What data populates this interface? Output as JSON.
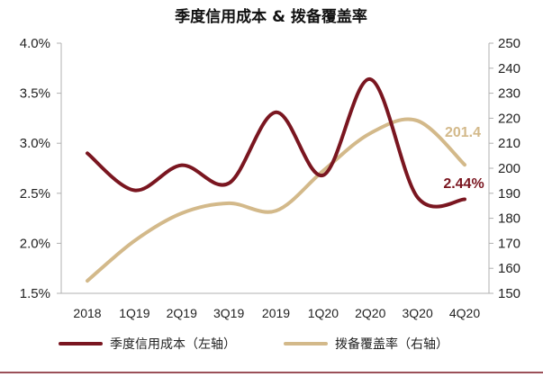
{
  "chart_data": {
    "type": "line",
    "title": "季度信用成本 & 拨备覆盖率",
    "categories": [
      "2018",
      "1Q19",
      "2Q19",
      "3Q19",
      "2019",
      "1Q20",
      "2Q20",
      "3Q20",
      "4Q20"
    ],
    "series": [
      {
        "name": "季度信用成本（左轴）",
        "axis": "left",
        "color": "#7a1620",
        "values": [
          2.9,
          2.53,
          2.78,
          2.6,
          3.31,
          2.68,
          3.64,
          2.46,
          2.44
        ],
        "value_label": "2.44%"
      },
      {
        "name": "拨备覆盖率（右轴）",
        "axis": "right",
        "color": "#d3b98a",
        "values": [
          155,
          171,
          182,
          186,
          183,
          199,
          214,
          219,
          201.4
        ],
        "value_label": "201.4"
      }
    ],
    "y_left": {
      "min": 1.5,
      "max": 4.0,
      "ticks": [
        "1.5%",
        "2.0%",
        "2.5%",
        "3.0%",
        "3.5%",
        "4.0%"
      ]
    },
    "y_right": {
      "min": 150,
      "max": 250,
      "ticks": [
        "150",
        "160",
        "170",
        "180",
        "190",
        "200",
        "210",
        "220",
        "230",
        "240",
        "250"
      ]
    },
    "grid": false,
    "legend_position": "bottom"
  }
}
